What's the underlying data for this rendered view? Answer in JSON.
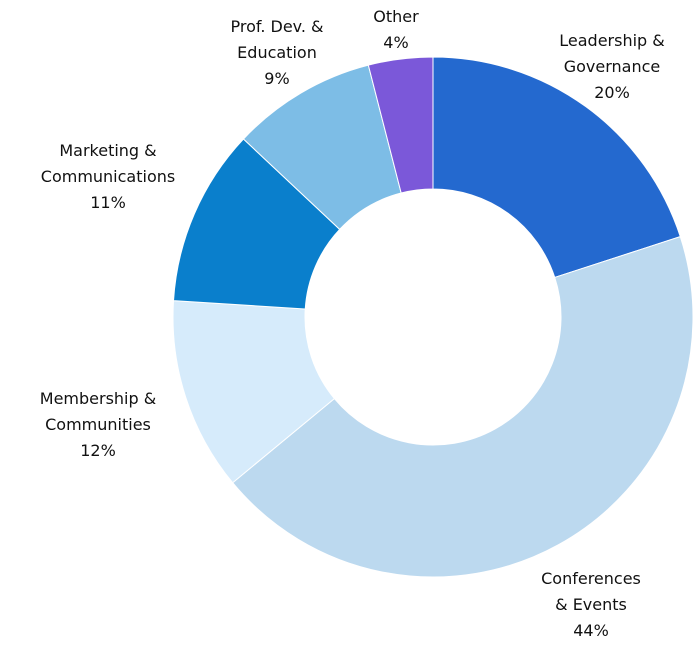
{
  "chart_data": {
    "type": "donut",
    "categories": [
      "Leadership & Governance",
      "Conferences & Events",
      "Membership & Communities",
      "Marketing & Communications",
      "Prof. Dev. & Education",
      "Other"
    ],
    "values": [
      20,
      44,
      12,
      11,
      9,
      4
    ],
    "value_labels": [
      "20%",
      "44%",
      "12%",
      "11%",
      "9%",
      "4%"
    ],
    "colors": [
      "#2469cf",
      "#bcd9ef",
      "#d6ebfb",
      "#0a7fcc",
      "#7dbde6",
      "#7b58d9"
    ]
  }
}
